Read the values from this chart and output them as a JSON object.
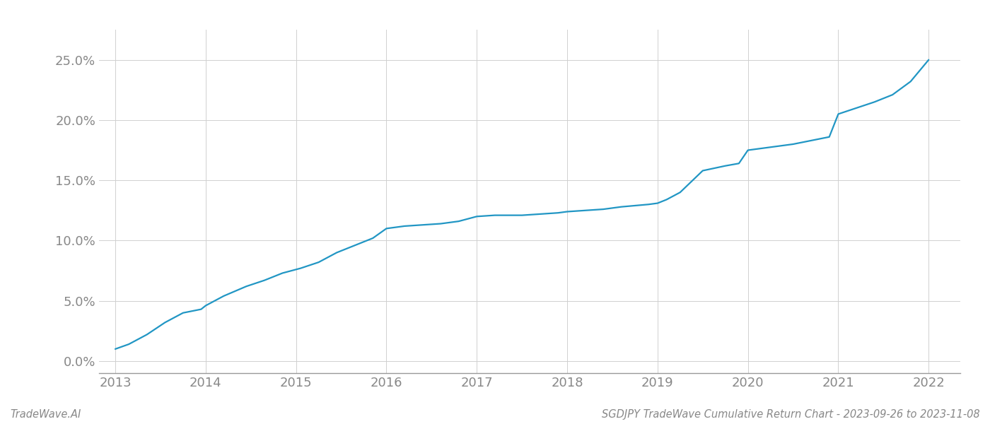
{
  "x": [
    2013.0,
    2013.15,
    2013.35,
    2013.55,
    2013.75,
    2013.95,
    2014.0,
    2014.2,
    2014.45,
    2014.65,
    2014.85,
    2015.05,
    2015.25,
    2015.45,
    2015.65,
    2015.85,
    2016.0,
    2016.2,
    2016.4,
    2016.6,
    2016.8,
    2017.0,
    2017.2,
    2017.5,
    2017.7,
    2017.9,
    2018.0,
    2018.2,
    2018.4,
    2018.6,
    2018.75,
    2018.9,
    2019.0,
    2019.1,
    2019.25,
    2019.5,
    2019.75,
    2019.9,
    2020.0,
    2020.2,
    2020.5,
    2020.7,
    2020.9,
    2021.0,
    2021.2,
    2021.4,
    2021.6,
    2021.8,
    2022.0
  ],
  "y": [
    0.01,
    0.014,
    0.022,
    0.032,
    0.04,
    0.043,
    0.046,
    0.054,
    0.062,
    0.067,
    0.073,
    0.077,
    0.082,
    0.09,
    0.096,
    0.102,
    0.11,
    0.112,
    0.113,
    0.114,
    0.116,
    0.12,
    0.121,
    0.121,
    0.122,
    0.123,
    0.124,
    0.125,
    0.126,
    0.128,
    0.129,
    0.13,
    0.131,
    0.134,
    0.14,
    0.158,
    0.162,
    0.164,
    0.175,
    0.177,
    0.18,
    0.183,
    0.186,
    0.205,
    0.21,
    0.215,
    0.221,
    0.232,
    0.25
  ],
  "line_color": "#2196c4",
  "line_width": 1.6,
  "yticks": [
    0.0,
    0.05,
    0.1,
    0.15,
    0.2,
    0.25
  ],
  "ytick_labels": [
    "0.0%",
    "5.0%",
    "10.0%",
    "15.0%",
    "20.0%",
    "25.0%"
  ],
  "xticks": [
    2013,
    2014,
    2015,
    2016,
    2017,
    2018,
    2019,
    2020,
    2021,
    2022
  ],
  "xtick_labels": [
    "2013",
    "2014",
    "2015",
    "2016",
    "2017",
    "2018",
    "2019",
    "2020",
    "2021",
    "2022"
  ],
  "xlim": [
    2012.82,
    2022.35
  ],
  "ylim": [
    -0.01,
    0.275
  ],
  "grid_color": "#d0d0d0",
  "grid_linestyle": "-",
  "grid_linewidth": 0.7,
  "background_color": "#ffffff",
  "watermark_left": "TradeWave.AI",
  "watermark_right": "SGDJPY TradeWave Cumulative Return Chart - 2023-09-26 to 2023-11-08",
  "watermark_fontsize": 10.5,
  "spine_color": "#999999",
  "tick_color": "#888888",
  "tick_fontsize": 13
}
